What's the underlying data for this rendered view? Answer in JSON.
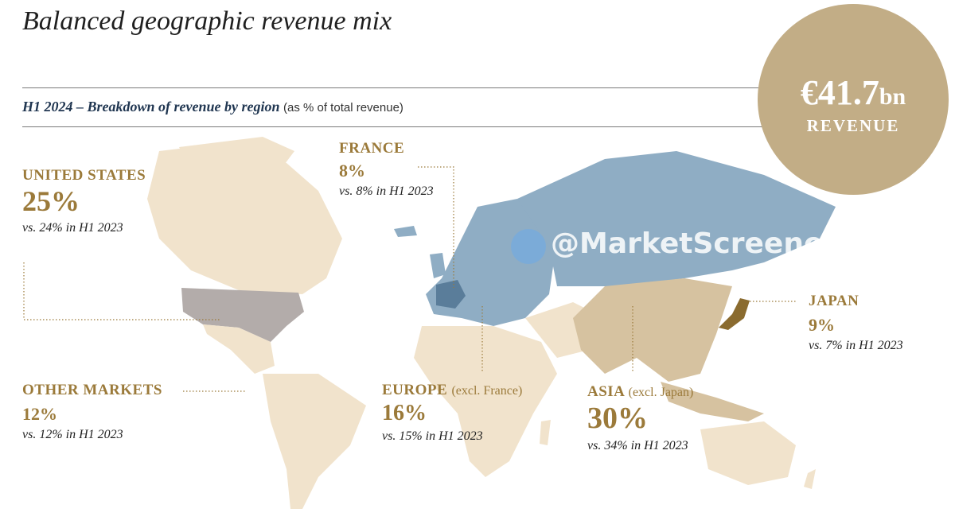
{
  "title": "Balanced geographic revenue mix",
  "subtitle": {
    "main": "H1 2024 – Breakdown of revenue by region",
    "note": "(as % of total revenue)"
  },
  "badge": {
    "amount": "€41.7",
    "unit": "bn",
    "label": "REVENUE"
  },
  "regions": {
    "us": {
      "name": "UNITED STATES",
      "pct": "25%",
      "cmp": "vs. 24% in H1 2023"
    },
    "france": {
      "name": "FRANCE",
      "pct": "8%",
      "cmp": "vs. 8% in H1 2023"
    },
    "japan": {
      "name": "JAPAN",
      "pct": "9%",
      "cmp": "vs. 7% in H1 2023"
    },
    "other": {
      "name": "OTHER MARKETS",
      "pct": "12%",
      "cmp": "vs. 12% in H1 2023"
    },
    "europe": {
      "name": "EUROPE",
      "sub": "(excl. France)",
      "pct": "16%",
      "cmp": "vs. 15% in H1 2023"
    },
    "asia": {
      "name": "ASIA",
      "sub": "(excl. Japan)",
      "pct": "30%",
      "cmp": "vs. 34% in H1 2023"
    }
  },
  "watermark": "@MarketScreener",
  "colors": {
    "land": "#f1e3cc",
    "us": "#b3acaa",
    "europe": "#8fadc4",
    "france": "#5a7d9a",
    "asia": "#d6c2a0",
    "japan": "#8a6b2f",
    "gold": "#9b7a3a",
    "badge": "#c2ad86"
  }
}
